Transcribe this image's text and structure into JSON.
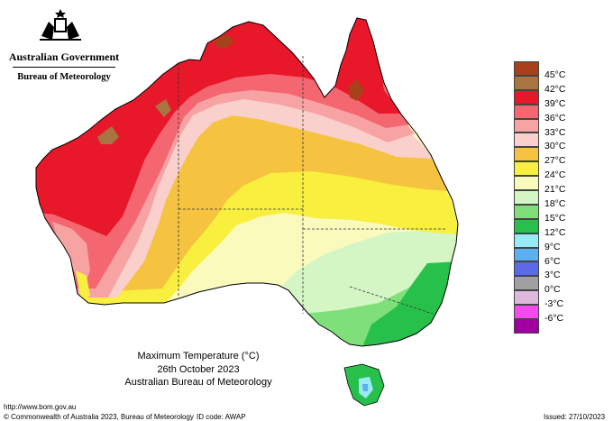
{
  "header": {
    "government": "Australian Government",
    "bureau": "Bureau of Meteorology"
  },
  "title": {
    "line1": "Maximum Temperature (°C)",
    "line2": "26th October 2023",
    "line3": "Australian Bureau of Meteorology"
  },
  "legend": [
    {
      "label": "45°C",
      "color": "#a8411a"
    },
    {
      "label": "42°C",
      "color": "#a87442"
    },
    {
      "label": "39°C",
      "color": "#e8172a"
    },
    {
      "label": "36°C",
      "color": "#f46771"
    },
    {
      "label": "33°C",
      "color": "#f7a3a4"
    },
    {
      "label": "30°C",
      "color": "#f9d0cc"
    },
    {
      "label": "27°C",
      "color": "#f6c341"
    },
    {
      "label": "24°C",
      "color": "#f8ef3e"
    },
    {
      "label": "21°C",
      "color": "#fafabd"
    },
    {
      "label": "18°C",
      "color": "#d4f6c5"
    },
    {
      "label": "15°C",
      "color": "#7fe07a"
    },
    {
      "label": "12°C",
      "color": "#27c04a"
    },
    {
      "label": "9°C",
      "color": "#98eaf5"
    },
    {
      "label": "6°C",
      "color": "#5ab0f0"
    },
    {
      "label": "3°C",
      "color": "#5a6ae6"
    },
    {
      "label": "0°C",
      "color": "#a0a0a0"
    },
    {
      "label": "-3°C",
      "color": "#ddb8dc"
    },
    {
      "label": "-6°C",
      "color": "#f54af0"
    }
  ],
  "extra_swatch": {
    "color": "#a000a0"
  },
  "footer": {
    "url": "http://www.bom.gov.au",
    "copyright": "© Commonwealth of Australia 2023, Bureau of Meteorology",
    "id_code": "ID code: AWAP",
    "issued": "Issued: 27/10/2023"
  }
}
